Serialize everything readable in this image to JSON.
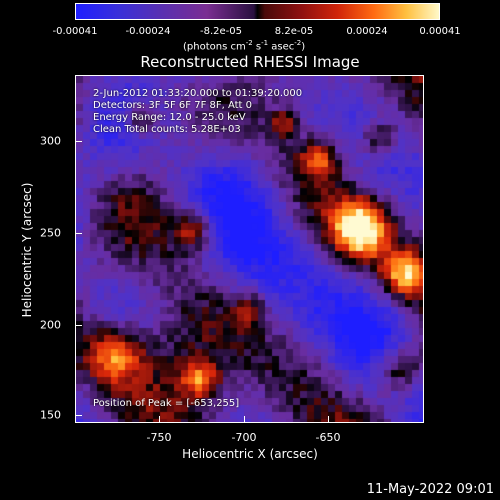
{
  "colorbar": {
    "ticks": [
      "-0.00041",
      "-0.00024",
      "-8.2e-05",
      "8.2e-05",
      "0.00024",
      "0.00041"
    ],
    "units": "(photons cm",
    "units_exp1": "-2",
    "units_mid": " s",
    "units_exp2": "-1",
    "units_mid2": " asec",
    "units_exp3": "-2",
    "units_end": ")"
  },
  "title": "Reconstructed RHESSI Image",
  "info": {
    "time_range": "2-Jun-2012 01:33:20.000 to 01:39:20.000",
    "detectors": "Detectors: 3F 5F 6F 7F 8F, Att 0",
    "energy": "Energy Range: 12.0 - 25.0 keV",
    "clean": "Clean     Total counts: 5.28E+03",
    "peak": "Position of Peak = [-653,255]"
  },
  "axes": {
    "x_label": "Heliocentric X (arcsec)",
    "y_label": "Heliocentric Y (arcsec)",
    "x_ticks": [
      "-750",
      "-700",
      "-650"
    ],
    "y_ticks": [
      "300",
      "250",
      "200",
      "150"
    ]
  },
  "timestamp": "11-May-2022 09:01"
}
